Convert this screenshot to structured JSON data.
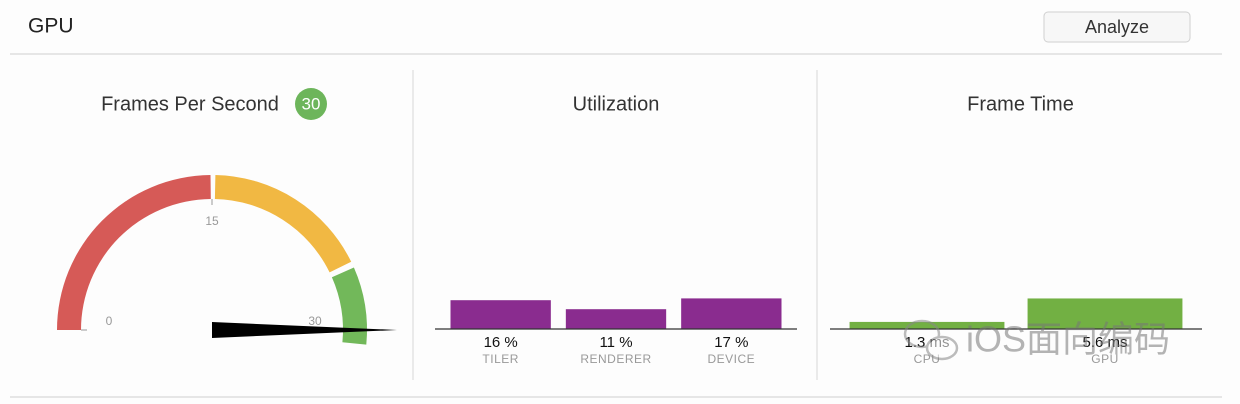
{
  "header": {
    "title": "GPU",
    "button": "Analyze"
  },
  "chart_data": [
    {
      "type": "gauge",
      "title": "Frames Per Second",
      "value": 30,
      "xlim": [
        0,
        30
      ],
      "xticks": [
        0,
        15,
        30
      ]
    },
    {
      "type": "bar",
      "title": "Utilization",
      "categories": [
        "TILER",
        "RENDERER",
        "DEVICE"
      ],
      "values": [
        16,
        11,
        17
      ],
      "value_labels": [
        "16 %",
        "11 %",
        "17 %"
      ],
      "color": "#8a2c8f",
      "ylim": [
        0,
        100
      ]
    },
    {
      "type": "bar",
      "title": "Frame Time",
      "categories": [
        "CPU",
        "GPU"
      ],
      "values": [
        1.3,
        5.6
      ],
      "value_labels": [
        "1.3 ms",
        "5.6 ms"
      ],
      "color": "#72b043",
      "ylim": [
        0,
        33
      ]
    }
  ],
  "watermark": "iOS面向编码"
}
